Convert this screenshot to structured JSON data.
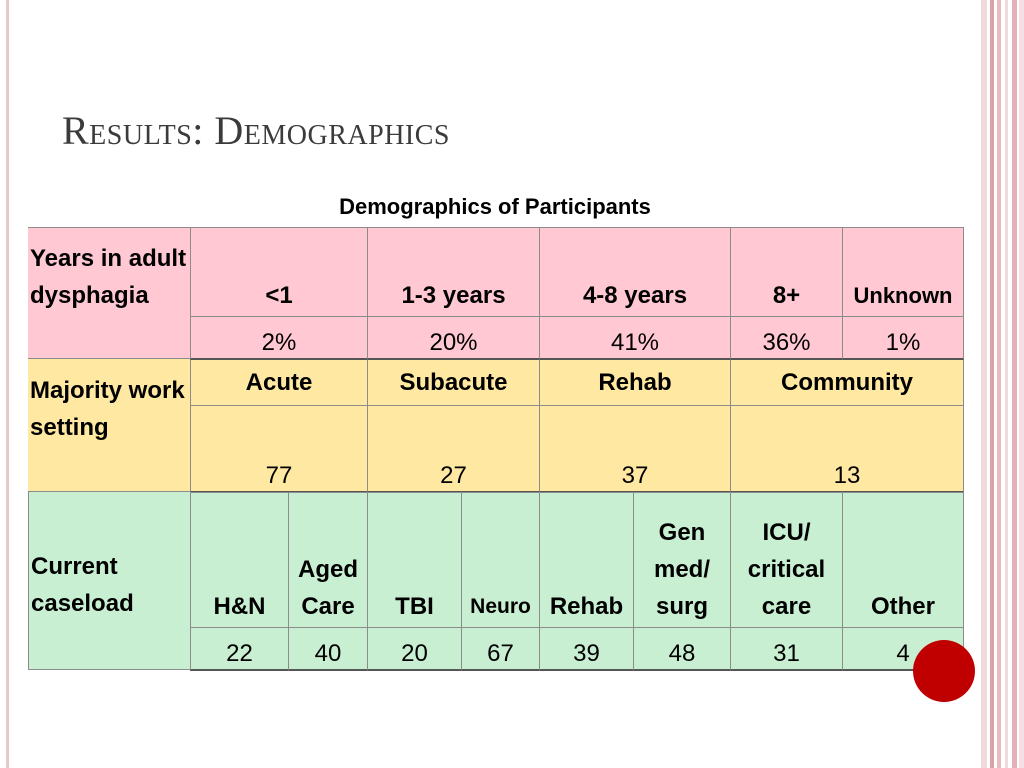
{
  "slide": {
    "title": "Results: Demographics"
  },
  "table": {
    "caption": "Demographics of Participants",
    "years_section": {
      "row_label": "Years in adult dysphagia",
      "headers": [
        "<1",
        "1-3 years",
        "4-8 years",
        "8+",
        "Unknown"
      ],
      "values": [
        "2%",
        "20%",
        "41%",
        "36%",
        "1%"
      ]
    },
    "work_section": {
      "row_label": "Majority work setting",
      "headers": [
        "Acute",
        "Subacute",
        "Rehab",
        "Community"
      ],
      "values": [
        "77",
        "27",
        "37",
        "13"
      ]
    },
    "caseload_section": {
      "row_label": "Current caseload",
      "headers": [
        "H&N",
        "Aged Care",
        "TBI",
        "Neuro",
        "Rehab",
        "Gen med/ surg",
        "ICU/ critical care",
        "Other"
      ],
      "values": [
        "22",
        "40",
        "20",
        "67",
        "39",
        "48",
        "31",
        "4"
      ]
    }
  },
  "colors": {
    "years_fill": "#ffc8d2",
    "work_fill": "#ffe8a2",
    "caseload_fill": "#c9efd3",
    "accent_circle": "#c00000"
  }
}
